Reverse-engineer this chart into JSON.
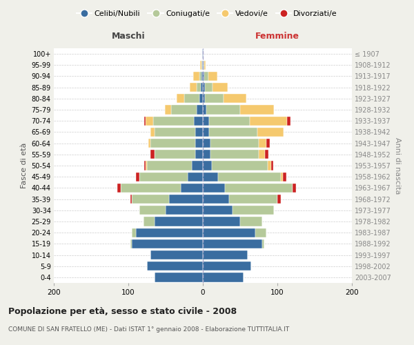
{
  "age_groups": [
    "0-4",
    "5-9",
    "10-14",
    "15-19",
    "20-24",
    "25-29",
    "30-34",
    "35-39",
    "40-44",
    "45-49",
    "50-54",
    "55-59",
    "60-64",
    "65-69",
    "70-74",
    "75-79",
    "80-84",
    "85-89",
    "90-94",
    "95-99",
    "100+"
  ],
  "birth_years": [
    "2003-2007",
    "1998-2002",
    "1993-1997",
    "1988-1992",
    "1983-1987",
    "1978-1982",
    "1973-1977",
    "1968-1972",
    "1963-1967",
    "1958-1962",
    "1953-1957",
    "1948-1952",
    "1943-1947",
    "1938-1942",
    "1933-1937",
    "1928-1932",
    "1923-1927",
    "1918-1922",
    "1913-1917",
    "1908-1912",
    "≤ 1907"
  ],
  "colors": {
    "celibi": "#3a6da0",
    "coniugati": "#b5c99a",
    "vedovi": "#f5c96e",
    "divorziati": "#cc2222"
  },
  "males": {
    "celibi": [
      65,
      75,
      70,
      95,
      90,
      65,
      50,
      45,
      30,
      20,
      15,
      10,
      10,
      10,
      12,
      8,
      5,
      3,
      2,
      1,
      1
    ],
    "coniugati": [
      0,
      0,
      0,
      2,
      5,
      15,
      35,
      50,
      80,
      65,
      60,
      55,
      60,
      55,
      55,
      35,
      20,
      5,
      3,
      1,
      0
    ],
    "vedovi": [
      0,
      0,
      0,
      0,
      0,
      0,
      0,
      0,
      0,
      0,
      2,
      0,
      3,
      5,
      10,
      8,
      10,
      10,
      8,
      2,
      0
    ],
    "divorziati": [
      0,
      0,
      0,
      0,
      0,
      0,
      0,
      2,
      5,
      5,
      2,
      5,
      0,
      0,
      2,
      0,
      0,
      0,
      0,
      0,
      0
    ]
  },
  "females": {
    "celibi": [
      55,
      65,
      60,
      80,
      70,
      50,
      40,
      35,
      30,
      20,
      12,
      10,
      10,
      8,
      8,
      5,
      3,
      3,
      2,
      1,
      1
    ],
    "coniugati": [
      0,
      0,
      0,
      2,
      15,
      30,
      55,
      65,
      90,
      85,
      75,
      65,
      65,
      65,
      55,
      45,
      25,
      10,
      5,
      1,
      0
    ],
    "vedovi": [
      0,
      0,
      0,
      0,
      0,
      0,
      0,
      0,
      0,
      2,
      5,
      8,
      10,
      35,
      50,
      45,
      30,
      20,
      12,
      2,
      0
    ],
    "divorziati": [
      0,
      0,
      0,
      0,
      0,
      0,
      0,
      5,
      5,
      5,
      2,
      5,
      5,
      0,
      5,
      0,
      0,
      0,
      0,
      0,
      0
    ]
  },
  "title": "Popolazione per età, sesso e stato civile - 2008",
  "subtitle": "COMUNE DI SAN FRATELLO (ME) - Dati ISTAT 1° gennaio 2008 - Elaborazione TUTTITALIA.IT",
  "xlabel_left": "Maschi",
  "xlabel_right": "Femmine",
  "ylabel_left": "Fasce di età",
  "ylabel_right": "Anni di nascita",
  "xlim": 200,
  "legend_labels": [
    "Celibi/Nubili",
    "Coniugati/e",
    "Vedovi/e",
    "Divorziati/e"
  ],
  "bg_color": "#f0f0ea",
  "plot_bg": "#ffffff"
}
